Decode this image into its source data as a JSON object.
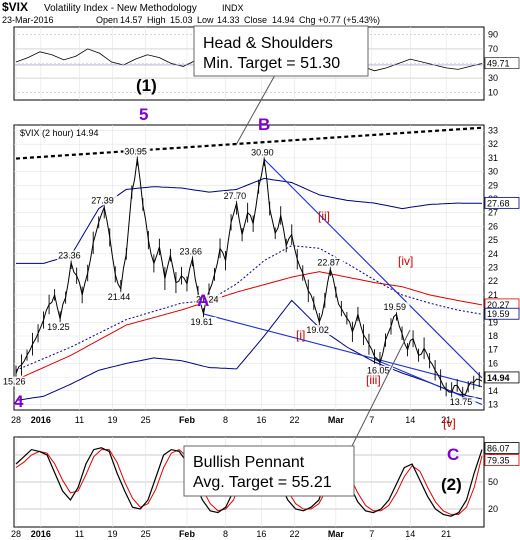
{
  "header": {
    "symbol": "$VIX",
    "name": "Volatility Index - New Methodology",
    "exchange": "INDX",
    "date": "23-Mar-2016",
    "open_label": "Open",
    "open": "14.57",
    "high_label": "High",
    "high": "15.03",
    "low_label": "Low",
    "low": "14.33",
    "close_label": "Close",
    "close": "14.94",
    "chg_label": "Chg",
    "chg": "+0.77 (+5.43%)"
  },
  "panel_legend": "$VIX (2 hour) 14.94",
  "colors": {
    "price": "#000000",
    "wave_label": "#cc0000",
    "major_label": "#8000cc",
    "band": "#000080",
    "sma_red": "#e00000",
    "trendline": "#1a2fd0",
    "bg": "#ffffff"
  },
  "chart_data": [
    {
      "type": "line",
      "name": "rsi_panel",
      "y_ticks": [
        "90",
        "70",
        "50",
        "30",
        "10"
      ],
      "last_value": "49.71",
      "ylim": [
        0,
        100
      ],
      "values": [
        52,
        58,
        66,
        62,
        55,
        60,
        70,
        64,
        52,
        48,
        56,
        62,
        58,
        50,
        46,
        54,
        60,
        55,
        50,
        47,
        52,
        58,
        62,
        57,
        50,
        44,
        48,
        54,
        52,
        46,
        40,
        44,
        50,
        56,
        52,
        48,
        44,
        42,
        46,
        50
      ]
    },
    {
      "type": "line",
      "name": "price_panel",
      "series_name": "$VIX (2 hour)",
      "ylim": [
        12.6,
        33.4
      ],
      "y_ticks": [
        "33",
        "32",
        "31",
        "30",
        "29",
        "28",
        "27",
        "26",
        "25",
        "24",
        "23",
        "22",
        "21",
        "20",
        "19",
        "18",
        "17",
        "16",
        "15",
        "14",
        "13"
      ],
      "x_ticks": [
        "28",
        "2016",
        "11",
        "19",
        "25",
        "Feb",
        "8",
        "16",
        "22",
        "Mar",
        "7",
        "14",
        "21"
      ],
      "x_tick_index": [
        0,
        9,
        23,
        35,
        47,
        62,
        76,
        89,
        101,
        116,
        129,
        143,
        156
      ],
      "n": 170,
      "anchors": [
        [
          0,
          15.26
        ],
        [
          3,
          16.2
        ],
        [
          6,
          17.4
        ],
        [
          9,
          18.6
        ],
        [
          12,
          20.3
        ],
        [
          14,
          21.0
        ],
        [
          16,
          19.25
        ],
        [
          18,
          20.8
        ],
        [
          20,
          23.36
        ],
        [
          22,
          22.4
        ],
        [
          24,
          21.0
        ],
        [
          26,
          22.6
        ],
        [
          28,
          24.8
        ],
        [
          30,
          26.3
        ],
        [
          32,
          27.39
        ],
        [
          34,
          25.2
        ],
        [
          36,
          22.5
        ],
        [
          38,
          21.44
        ],
        [
          40,
          24.0
        ],
        [
          42,
          28.5
        ],
        [
          44,
          30.95
        ],
        [
          46,
          27.6
        ],
        [
          48,
          25.0
        ],
        [
          50,
          23.3
        ],
        [
          52,
          24.5
        ],
        [
          54,
          22.2
        ],
        [
          56,
          23.9
        ],
        [
          58,
          21.9
        ],
        [
          60,
          22.4
        ],
        [
          62,
          21.8
        ],
        [
          64,
          23.66
        ],
        [
          66,
          21.2
        ],
        [
          68,
          19.61
        ],
        [
          70,
          21.24
        ],
        [
          72,
          22.5
        ],
        [
          74,
          24.4
        ],
        [
          76,
          23.5
        ],
        [
          78,
          26.3
        ],
        [
          80,
          27.7
        ],
        [
          82,
          25.4
        ],
        [
          84,
          27.0
        ],
        [
          86,
          26.2
        ],
        [
          88,
          28.9
        ],
        [
          90,
          30.9
        ],
        [
          92,
          27.3
        ],
        [
          94,
          25.5
        ],
        [
          96,
          26.8
        ],
        [
          98,
          24.6
        ],
        [
          100,
          25.4
        ],
        [
          102,
          23.6
        ],
        [
          104,
          22.6
        ],
        [
          106,
          21.3
        ],
        [
          108,
          20.4
        ],
        [
          110,
          19.02
        ],
        [
          112,
          20.6
        ],
        [
          114,
          22.87
        ],
        [
          116,
          21.2
        ],
        [
          118,
          20.0
        ],
        [
          120,
          19.3
        ],
        [
          122,
          18.3
        ],
        [
          124,
          19.6
        ],
        [
          126,
          18.1
        ],
        [
          128,
          17.4
        ],
        [
          130,
          16.5
        ],
        [
          132,
          16.05
        ],
        [
          134,
          17.7
        ],
        [
          136,
          18.7
        ],
        [
          138,
          19.59
        ],
        [
          140,
          18.2
        ],
        [
          142,
          17.0
        ],
        [
          144,
          17.8
        ],
        [
          146,
          16.6
        ],
        [
          148,
          17.1
        ],
        [
          150,
          16.2
        ],
        [
          152,
          15.5
        ],
        [
          154,
          14.8
        ],
        [
          156,
          14.1
        ],
        [
          158,
          13.9
        ],
        [
          160,
          14.4
        ],
        [
          162,
          13.75
        ],
        [
          164,
          14.3
        ],
        [
          166,
          14.6
        ],
        [
          169,
          14.94
        ]
      ],
      "bollinger_upper": [
        [
          0,
          23.3
        ],
        [
          10,
          23.3
        ],
        [
          20,
          23.9
        ],
        [
          30,
          27.3
        ],
        [
          40,
          28.7
        ],
        [
          50,
          28.9
        ],
        [
          60,
          28.8
        ],
        [
          70,
          28.5
        ],
        [
          80,
          28.7
        ],
        [
          90,
          29.5
        ],
        [
          100,
          29.2
        ],
        [
          110,
          28.3
        ],
        [
          120,
          27.9
        ],
        [
          130,
          27.7
        ],
        [
          140,
          27.3
        ],
        [
          150,
          27.6
        ],
        [
          160,
          27.7
        ],
        [
          169,
          27.68
        ]
      ],
      "bollinger_lower": [
        [
          0,
          13.3
        ],
        [
          10,
          13.6
        ],
        [
          20,
          14.5
        ],
        [
          30,
          15.5
        ],
        [
          40,
          16.0
        ],
        [
          50,
          16.4
        ],
        [
          60,
          16.2
        ],
        [
          70,
          15.7
        ],
        [
          80,
          15.6
        ],
        [
          90,
          18.0
        ],
        [
          100,
          20.6
        ],
        [
          110,
          18.6
        ],
        [
          120,
          17.2
        ],
        [
          130,
          16.1
        ],
        [
          140,
          15.3
        ],
        [
          150,
          14.6
        ],
        [
          160,
          13.8
        ],
        [
          169,
          13.4
        ]
      ],
      "sma_red": [
        [
          0,
          14.8
        ],
        [
          20,
          16.6
        ],
        [
          40,
          18.8
        ],
        [
          60,
          19.9
        ],
        [
          80,
          21.2
        ],
        [
          100,
          22.3
        ],
        [
          110,
          22.7
        ],
        [
          120,
          22.3
        ],
        [
          130,
          21.9
        ],
        [
          140,
          21.6
        ],
        [
          150,
          21.0
        ],
        [
          160,
          20.6
        ],
        [
          169,
          20.27
        ]
      ],
      "sma_blue_dotted": [
        [
          0,
          15.5
        ],
        [
          20,
          17.2
        ],
        [
          40,
          19.2
        ],
        [
          60,
          20.4
        ],
        [
          70,
          20.6
        ],
        [
          80,
          21.8
        ],
        [
          90,
          23.5
        ],
        [
          100,
          24.6
        ],
        [
          110,
          24.4
        ],
        [
          120,
          23.3
        ],
        [
          130,
          22.1
        ],
        [
          140,
          21.0
        ],
        [
          150,
          20.4
        ],
        [
          160,
          19.9
        ],
        [
          169,
          19.59
        ]
      ],
      "resistance_line": [
        [
          0,
          30.95
        ],
        [
          169,
          33.2
        ]
      ],
      "pennant_upper": [
        [
          90,
          30.9
        ],
        [
          169,
          14.94
        ]
      ],
      "pennant_lower": [
        [
          68,
          19.61
        ],
        [
          169,
          14.3
        ]
      ],
      "pennant_lower2": [
        [
          130,
          16.3
        ],
        [
          169,
          13.0
        ]
      ],
      "price_labels": [
        {
          "text": "15.26",
          "i": 0,
          "v": 15.26
        },
        {
          "text": "19.25",
          "i": 16,
          "v": 19.25
        },
        {
          "text": "23.36",
          "i": 20,
          "v": 23.36
        },
        {
          "text": "21.44",
          "i": 38,
          "v": 21.44
        },
        {
          "text": "27.39",
          "i": 32,
          "v": 27.39
        },
        {
          "text": "30.95",
          "i": 44,
          "v": 30.95
        },
        {
          "text": "23.66",
          "i": 64,
          "v": 23.66
        },
        {
          "text": "21.24",
          "i": 70,
          "v": 21.24
        },
        {
          "text": "19.61",
          "i": 68,
          "v": 19.61
        },
        {
          "text": "27.70",
          "i": 80,
          "v": 27.7
        },
        {
          "text": "30.90",
          "i": 90,
          "v": 30.9
        },
        {
          "text": "22.87",
          "i": 114,
          "v": 22.87
        },
        {
          "text": "19.02",
          "i": 110,
          "v": 19.02
        },
        {
          "text": "16.05",
          "i": 132,
          "v": 16.05
        },
        {
          "text": "19.59",
          "i": 138,
          "v": 19.59
        },
        {
          "text": "13.75",
          "i": 162,
          "v": 13.75
        }
      ],
      "right_labels": [
        "27.68",
        "20.27",
        "19.59",
        "14.94"
      ]
    },
    {
      "type": "line",
      "name": "stochastic_panel",
      "y_ticks": [
        "80",
        "50",
        "20"
      ],
      "last_values": [
        "86.07",
        "79.35"
      ],
      "ylim": [
        0,
        100
      ],
      "k_values": [
        70,
        78,
        86,
        84,
        80,
        60,
        40,
        30,
        44,
        70,
        86,
        88,
        84,
        60,
        40,
        22,
        20,
        30,
        55,
        80,
        86,
        84,
        72,
        50,
        30,
        18,
        16,
        22,
        40,
        70,
        86,
        88,
        84,
        70,
        48,
        30,
        20,
        18,
        22,
        30,
        55,
        72,
        64,
        46,
        28,
        18,
        16,
        20,
        30,
        48,
        66,
        70,
        52,
        34,
        20,
        14,
        12,
        16,
        30,
        60,
        86
      ],
      "d_values": [
        66,
        72,
        80,
        84,
        82,
        70,
        52,
        38,
        40,
        58,
        78,
        86,
        86,
        72,
        50,
        32,
        22,
        26,
        42,
        66,
        82,
        86,
        78,
        62,
        42,
        26,
        18,
        20,
        30,
        54,
        78,
        87,
        86,
        76,
        58,
        40,
        26,
        20,
        20,
        26,
        42,
        62,
        68,
        56,
        38,
        24,
        18,
        18,
        24,
        38,
        56,
        68,
        62,
        44,
        28,
        18,
        14,
        14,
        22,
        44,
        79
      ]
    }
  ],
  "annotations": {
    "hs_line1": "Head & Shoulders",
    "hs_line2": "Min. Target = 51.30",
    "pennant_line1": "Bullish Pennant",
    "pennant_line2": "Avg. Target = 55.21",
    "wave_1": "(1)",
    "wave_5": "5",
    "wave_b": "B",
    "wave_a": "A",
    "wave_4": "4",
    "wave_c": "C",
    "wave_2": "(2)",
    "sub_i_bracket": "[i]",
    "sub_ii_bracket": "[ii]",
    "sub_iii_bracket": "[iii]",
    "sub_iv_bracket": "[iv]",
    "sub_v_bracket": "[v]",
    "sub_i_paren": "[i]"
  }
}
